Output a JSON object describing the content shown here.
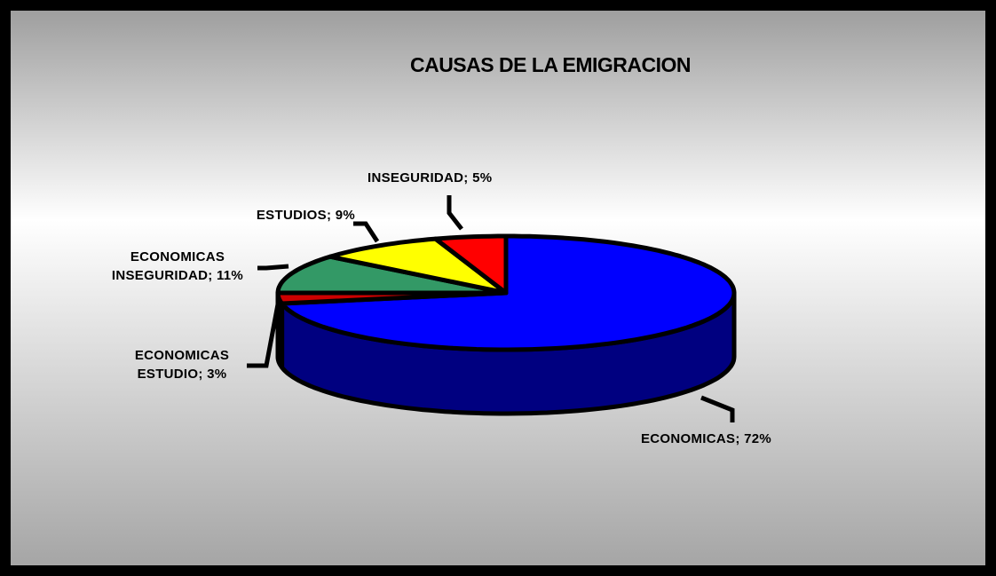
{
  "chart_data": {
    "type": "pie3d",
    "title": "CAUSAS DE LA EMIGRACION",
    "values": [
      72,
      3,
      11,
      9,
      5
    ],
    "value_labels": [
      "ECONOMICAS; 72%",
      "ECONOMICAS ESTUDIO; 3%",
      "ECONOMICAS INSEGURIDAD; 11%",
      "ESTUDIOS; 9%",
      "INSEGURIDAD; 5%"
    ],
    "colors": [
      "#0000ff",
      "#cc0000",
      "#339966",
      "#ffff00",
      "#ff0000"
    ]
  }
}
